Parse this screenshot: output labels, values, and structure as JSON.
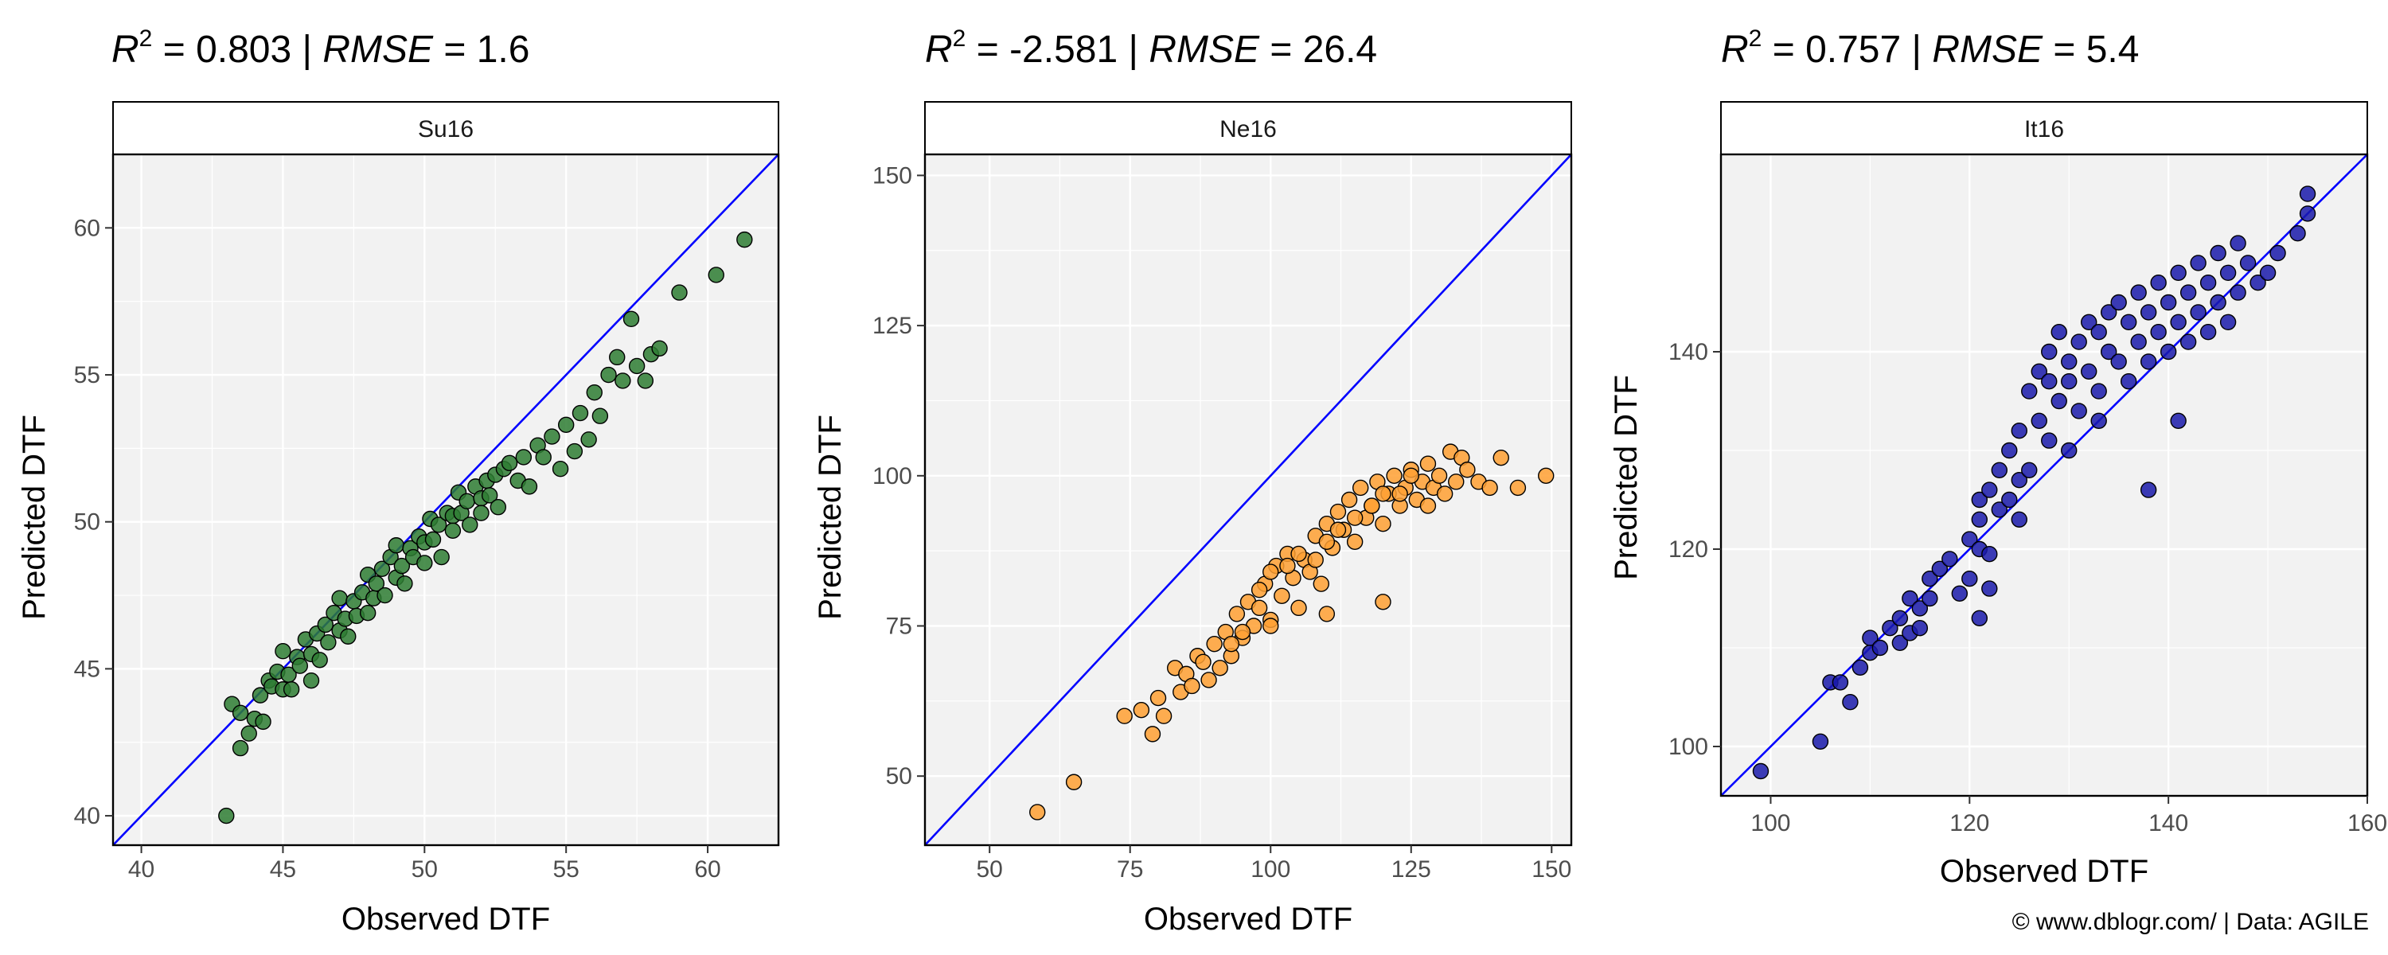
{
  "caption": "© www.dblogr.com/  |  Data: AGILE",
  "chart_data": [
    {
      "type": "scatter",
      "strip": "Su16",
      "title": {
        "r2_label": "R",
        "r2_sup": "2",
        "r2_value": " = 0.803 | ",
        "rmse_label": "RMSE",
        "rmse_value": " = 1.6"
      },
      "xlabel": "Observed DTF",
      "ylabel": "Predicted DTF",
      "xlim": [
        39,
        62.5
      ],
      "ylim": [
        39,
        62.5
      ],
      "xticks": [
        40,
        45,
        50,
        55,
        60
      ],
      "yticks": [
        40,
        45,
        50,
        55,
        60
      ],
      "identity_line": true,
      "grid": true,
      "point_color": "#2e7d32",
      "line_color": "#0000ff",
      "series": [
        {
          "x": [
            43,
            43.2,
            43.5,
            43.5,
            43.8,
            44,
            44.2,
            44.3,
            44.5,
            44.6,
            44.8,
            45,
            45,
            45.2,
            45.3,
            45.5,
            45.6,
            45.8,
            46,
            46,
            46.2,
            46.3,
            46.5,
            46.6,
            46.8,
            47,
            47,
            47.2,
            47.3,
            47.5,
            47.6,
            47.8,
            48,
            48,
            48.2,
            48.3,
            48.5,
            48.6,
            48.8,
            49,
            49,
            49.2,
            49.3,
            49.5,
            49.6,
            49.8,
            50,
            50,
            50.2,
            50.3,
            50.5,
            50.6,
            50.8,
            51,
            51,
            51.2,
            51.3,
            51.5,
            51.6,
            51.8,
            52,
            52,
            52.2,
            52.3,
            52.5,
            52.6,
            52.8,
            53,
            53.3,
            53.5,
            53.7,
            54,
            54.2,
            54.5,
            54.8,
            55,
            55.3,
            55.5,
            55.8,
            56,
            56.2,
            56.5,
            56.8,
            57,
            57.3,
            57.5,
            57.8,
            58,
            58.3,
            59,
            60.3,
            61.3
          ],
          "y": [
            40,
            43.8,
            42.3,
            43.5,
            42.8,
            43.3,
            44.1,
            43.2,
            44.6,
            44.4,
            44.9,
            44.3,
            45.6,
            44.8,
            44.3,
            45.4,
            45.1,
            46,
            44.6,
            45.5,
            46.2,
            45.3,
            46.5,
            45.9,
            46.9,
            46.3,
            47.4,
            46.7,
            46.1,
            47.3,
            46.8,
            47.6,
            46.9,
            48.2,
            47.4,
            47.9,
            48.4,
            47.5,
            48.8,
            48.1,
            49.2,
            48.5,
            47.9,
            49.1,
            48.8,
            49.5,
            49.3,
            48.6,
            50.1,
            49.4,
            49.9,
            48.8,
            50.3,
            50.2,
            49.7,
            51,
            50.3,
            50.7,
            49.9,
            51.2,
            50.8,
            50.3,
            51.4,
            50.9,
            51.6,
            50.5,
            51.8,
            52,
            51.4,
            52.2,
            51.2,
            52.6,
            52.2,
            52.9,
            51.8,
            53.3,
            52.4,
            53.7,
            52.8,
            54.4,
            53.6,
            55,
            55.6,
            54.8,
            56.9,
            55.3,
            54.8,
            55.7,
            55.9,
            57.8,
            58.4,
            59.6
          ]
        }
      ]
    },
    {
      "type": "scatter",
      "strip": "Ne16",
      "title": {
        "r2_label": "R",
        "r2_sup": "2",
        "r2_value": " = -2.581 | ",
        "rmse_label": "RMSE",
        "rmse_value": " = 26.4"
      },
      "xlabel": "Observed DTF",
      "ylabel": "Predicted DTF",
      "xlim": [
        38.5,
        153.5
      ],
      "ylim": [
        38.5,
        153.5
      ],
      "xticks": [
        50,
        75,
        100,
        125,
        150
      ],
      "yticks": [
        50,
        75,
        100,
        125,
        150
      ],
      "identity_line": true,
      "grid": true,
      "point_color": "#ffa033",
      "line_color": "#0000ff",
      "series": [
        {
          "x": [
            58.5,
            65,
            74,
            77,
            79,
            80,
            81,
            83,
            84,
            85,
            86,
            87,
            88,
            89,
            90,
            91,
            92,
            93,
            94,
            95,
            96,
            97,
            98,
            99,
            100,
            101,
            102,
            103,
            104,
            105,
            106,
            107,
            108,
            109,
            110,
            111,
            112,
            113,
            114,
            115,
            116,
            117,
            118,
            119,
            120,
            121,
            122,
            123,
            124,
            125,
            126,
            127,
            128,
            129,
            130,
            131,
            132,
            133,
            134,
            135,
            137,
            139,
            141,
            144,
            149,
            95,
            98,
            100,
            103,
            105,
            108,
            110,
            112,
            115,
            118,
            120,
            123,
            125,
            128,
            120,
            110,
            100,
            93
          ],
          "y": [
            44,
            49,
            60,
            61,
            57,
            63,
            60,
            68,
            64,
            67,
            65,
            70,
            69,
            66,
            72,
            68,
            74,
            70,
            77,
            73,
            79,
            75,
            78,
            82,
            76,
            85,
            80,
            87,
            83,
            78,
            86,
            84,
            90,
            82,
            92,
            88,
            94,
            91,
            96,
            89,
            98,
            93,
            95,
            99,
            92,
            97,
            100,
            95,
            98,
            101,
            96,
            99,
            102,
            98,
            100,
            97,
            104,
            99,
            103,
            101,
            99,
            98,
            103,
            98,
            100,
            74,
            81,
            84,
            85,
            87,
            86,
            89,
            91,
            93,
            95,
            97,
            97,
            100,
            95,
            79,
            77,
            75,
            72
          ]
        }
      ]
    },
    {
      "type": "scatter",
      "strip": "It16",
      "title": {
        "r2_label": "R",
        "r2_sup": "2",
        "r2_value": " = 0.757 | ",
        "rmse_label": "RMSE",
        "rmse_value": " = 5.4"
      },
      "xlabel": "Observed DTF",
      "ylabel": "Predicted DTF",
      "xlim": [
        95,
        160
      ],
      "ylim": [
        95,
        160
      ],
      "xticks": [
        100,
        120,
        140,
        160
      ],
      "yticks": [
        100,
        120,
        140
      ],
      "identity_line": true,
      "grid": true,
      "point_color": "#1a1aaa",
      "line_color": "#0000ff",
      "series": [
        {
          "x": [
            99,
            105,
            106,
            107,
            108,
            109,
            110,
            110,
            111,
            112,
            113,
            113,
            114,
            114,
            115,
            115,
            116,
            116,
            117,
            118,
            119,
            120,
            120,
            121,
            121,
            121,
            122,
            122,
            123,
            123,
            124,
            124,
            125,
            125,
            126,
            126,
            127,
            127,
            128,
            128,
            129,
            129,
            130,
            130,
            131,
            131,
            132,
            132,
            133,
            133,
            134,
            134,
            135,
            135,
            136,
            136,
            137,
            137,
            138,
            138,
            139,
            139,
            140,
            140,
            141,
            141,
            142,
            142,
            143,
            143,
            144,
            144,
            145,
            145,
            146,
            146,
            147,
            147,
            148,
            149,
            150,
            151,
            153,
            154,
            154,
            121,
            122,
            125,
            128,
            130,
            133,
            138,
            141
          ],
          "y": [
            97.5,
            100.5,
            106.5,
            106.5,
            104.5,
            108,
            109.5,
            111,
            110,
            112,
            110.5,
            113,
            115,
            111.5,
            114,
            112,
            117,
            115,
            118,
            119,
            115.5,
            121,
            117,
            123,
            125,
            120,
            126,
            119.5,
            124,
            128,
            130,
            125,
            127,
            132,
            128,
            136,
            133,
            138,
            131,
            140,
            135,
            142,
            139,
            137,
            141,
            134,
            143,
            138,
            142,
            136,
            144,
            140,
            145,
            139,
            143,
            137,
            146,
            141,
            144,
            139,
            147,
            142,
            140,
            145,
            143,
            148,
            146,
            141,
            149,
            144,
            147,
            142,
            150,
            145,
            148,
            143,
            151,
            146,
            149,
            147,
            148,
            150,
            152,
            156,
            154,
            113,
            116,
            123,
            137,
            130,
            133,
            126,
            133
          ]
        }
      ]
    }
  ]
}
